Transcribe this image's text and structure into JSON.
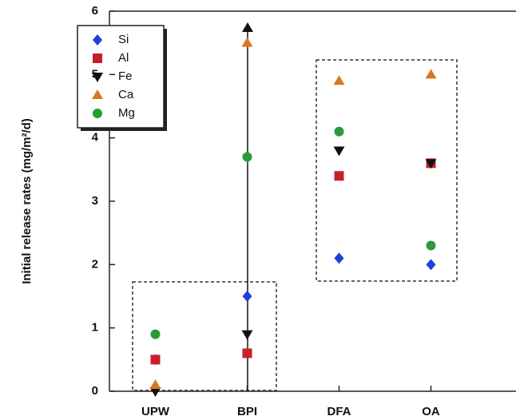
{
  "chart_data": {
    "type": "scatter",
    "y_label": "Initial release rates (mg/m²/d)",
    "categories": [
      "UPW",
      "BPI",
      "DFA",
      "OA"
    ],
    "series": [
      {
        "name": "Si",
        "color": "#1f3fd6",
        "marker": "diamond",
        "values": [
          0.5,
          1.5,
          2.1,
          2.0
        ]
      },
      {
        "name": "Al",
        "color": "#c8202a",
        "marker": "square",
        "values": [
          0.5,
          0.6,
          3.4,
          3.6
        ]
      },
      {
        "name": "Fe",
        "color": "#111111",
        "marker": "triangle-down",
        "values": [
          0.0,
          0.9,
          3.8,
          3.6
        ]
      },
      {
        "name": "Ca",
        "color": "#d8781e",
        "marker": "triangle-up",
        "values": [
          0.1,
          5.5,
          4.9,
          5.0
        ]
      },
      {
        "name": "Mg",
        "color": "#2a9a3a",
        "marker": "circle",
        "values": [
          0.9,
          3.7,
          4.1,
          2.3
        ]
      }
    ],
    "ylim": [
      0,
      6
    ],
    "yticks": [
      0,
      1,
      2,
      3,
      4,
      5,
      6
    ],
    "legend": "upper-left"
  }
}
